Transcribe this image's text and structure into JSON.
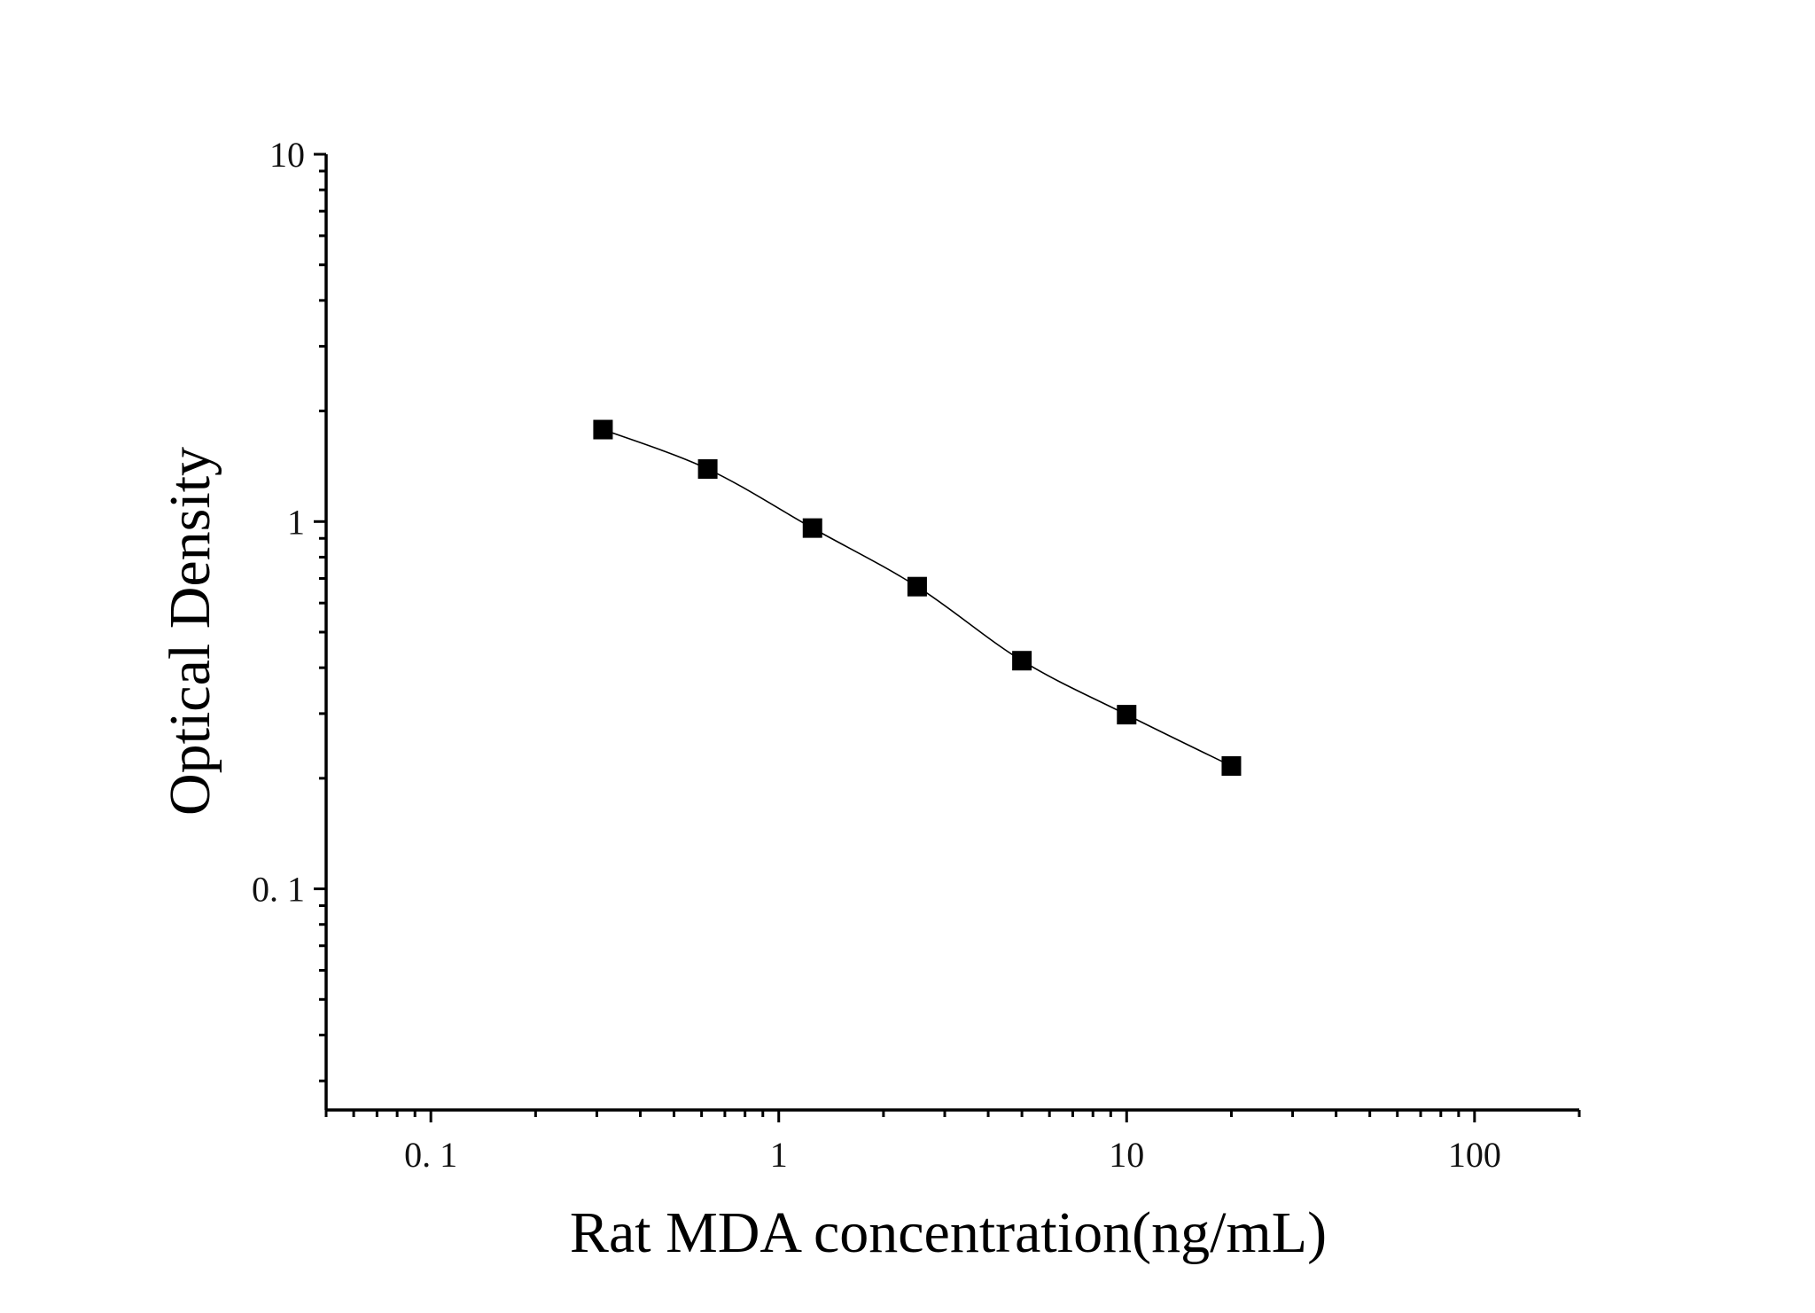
{
  "chart_data": {
    "type": "scatter",
    "title": "",
    "xlabel": "Rat MDA concentration(ng/mL)",
    "ylabel": "Optical Density",
    "x_scale": "log",
    "y_scale": "log",
    "xlim": [
      0.05,
      200
    ],
    "ylim": [
      0.025,
      10
    ],
    "x_ticks": [
      {
        "value": 0.1,
        "label": "0. 1"
      },
      {
        "value": 1,
        "label": "1"
      },
      {
        "value": 10,
        "label": "10"
      },
      {
        "value": 100,
        "label": "100"
      }
    ],
    "y_ticks": [
      {
        "value": 0.1,
        "label": "0. 1"
      },
      {
        "value": 1,
        "label": "1"
      },
      {
        "value": 10,
        "label": "10"
      }
    ],
    "grid": false,
    "marker": "square",
    "series": [
      {
        "x": [
          0.3125,
          0.625,
          1.25,
          2.5,
          5,
          10,
          20
        ],
        "y": [
          1.78,
          1.39,
          0.96,
          0.665,
          0.418,
          0.298,
          0.216
        ],
        "fit_line": true,
        "color": "#000000"
      }
    ]
  }
}
